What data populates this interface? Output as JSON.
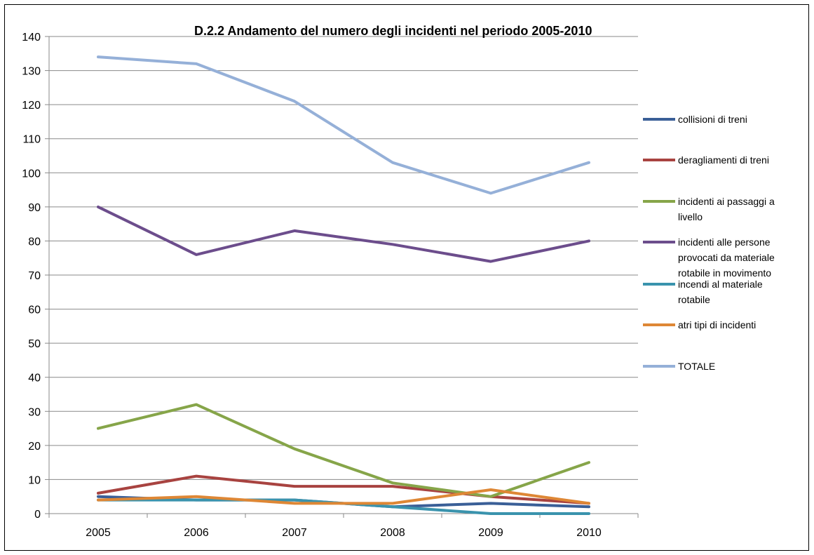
{
  "chart_data": {
    "type": "line",
    "title": "D.2.2 Andamento del numero degli incidenti nel periodo 2005-2010",
    "xlabel": "",
    "ylabel": "",
    "categories": [
      "2005",
      "2006",
      "2007",
      "2008",
      "2009",
      "2010"
    ],
    "ylim": [
      0,
      140
    ],
    "ystep": 10,
    "grid": true,
    "legend_position": "right",
    "series": [
      {
        "name": "collisioni di treni",
        "color": "#3A5F97",
        "values": [
          5,
          4,
          4,
          2,
          3,
          2
        ]
      },
      {
        "name": "deragliamenti di treni",
        "color": "#A84340",
        "values": [
          6,
          11,
          8,
          8,
          5,
          3
        ]
      },
      {
        "name": "incidenti ai passaggi a livello",
        "color": "#86A549",
        "values": [
          25,
          32,
          19,
          9,
          5,
          15
        ]
      },
      {
        "name": "incidenti alle persone provocati da materiale rotabile in movimento",
        "color": "#6C4D8C",
        "values": [
          90,
          76,
          83,
          79,
          74,
          80
        ]
      },
      {
        "name": "incendi al materiale rotabile",
        "color": "#3A93AD",
        "values": [
          4,
          4,
          4,
          2,
          0,
          0
        ]
      },
      {
        "name": "atri tipi di incidenti",
        "color": "#DE8735",
        "values": [
          4,
          5,
          3,
          3,
          7,
          3
        ]
      },
      {
        "name": "TOTALE",
        "color": "#95B0D8",
        "values": [
          134,
          132,
          121,
          103,
          94,
          103
        ]
      }
    ]
  }
}
